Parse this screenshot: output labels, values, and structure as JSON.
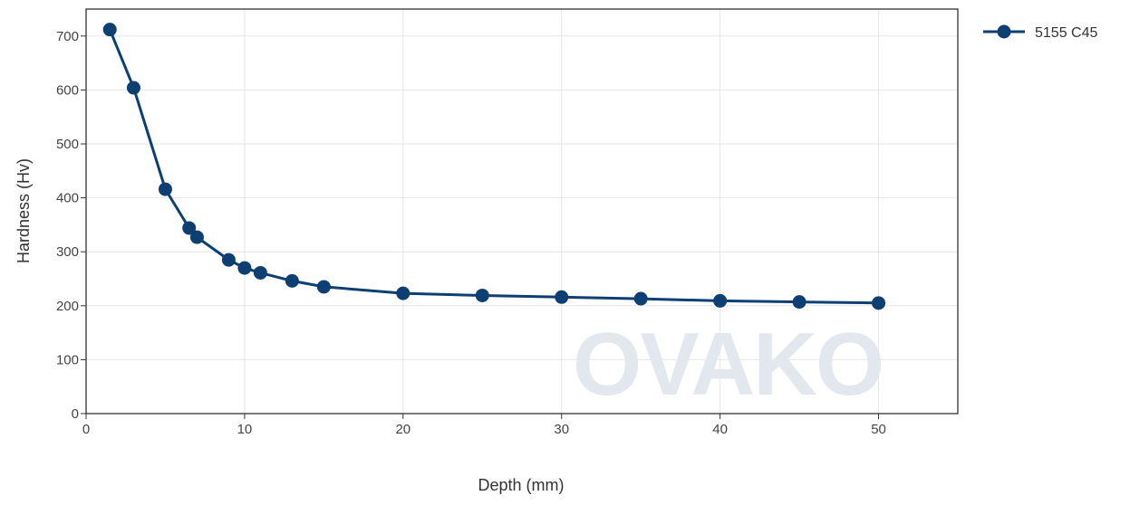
{
  "chart_data": {
    "type": "line",
    "xlabel": "Depth (mm)",
    "ylabel": "Hardness (Hv)",
    "xlim": [
      0,
      55
    ],
    "ylim": [
      0,
      750
    ],
    "x_ticks": [
      0,
      10,
      20,
      30,
      40,
      50
    ],
    "y_ticks": [
      0,
      100,
      200,
      300,
      400,
      500,
      600,
      700
    ],
    "grid": true,
    "legend_position": "top-right",
    "watermark": "OVAKO",
    "series": [
      {
        "name": "5155 C45",
        "color": "#0d3f73",
        "x": [
          1.5,
          3,
          5,
          6.5,
          7,
          9,
          10,
          11,
          13,
          15,
          20,
          25,
          30,
          35,
          40,
          45,
          50
        ],
        "y": [
          712,
          604,
          416,
          344,
          327,
          285,
          270,
          261,
          246,
          235,
          223,
          219,
          216,
          213,
          209,
          207,
          205
        ]
      }
    ]
  }
}
